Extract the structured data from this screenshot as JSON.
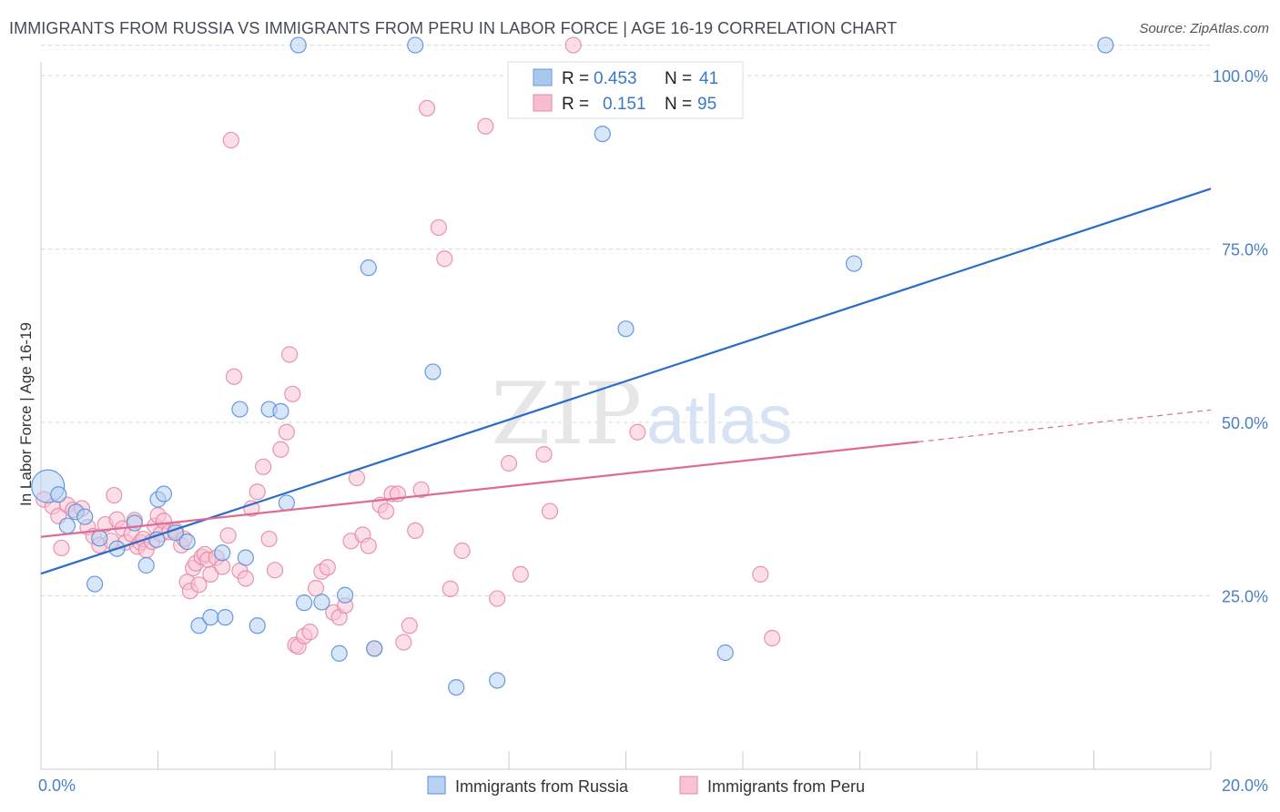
{
  "title": "IMMIGRANTS FROM RUSSIA VS IMMIGRANTS FROM PERU IN LABOR FORCE | AGE 16-19 CORRELATION CHART",
  "source": "Source: ZipAtlas.com",
  "watermark": {
    "zip": "ZIP",
    "atlas": "atlas"
  },
  "legend": {
    "r_label": "R =",
    "n_label": "N =",
    "rows": [
      {
        "r": "0.453",
        "n": "41",
        "color": "#a9c8f0",
        "edge": "#6a9ad8"
      },
      {
        "r": "0.151",
        "n": "95",
        "color": "#f7bcd0",
        "edge": "#e888a8"
      }
    ]
  },
  "colors": {
    "russia_fill": "#b8d2f4",
    "russia_edge": "#5a8fd6",
    "russia_line": "#2a6cc8",
    "peru_fill": "#f9c3d4",
    "peru_edge": "#e48aa8",
    "peru_line": "#e06a96",
    "grid": "#d8d8d8",
    "tick_text": "#4a80c8"
  },
  "chart_data": {
    "type": "scatter",
    "title": "IMMIGRANTS FROM RUSSIA VS IMMIGRANTS FROM PERU IN LABOR FORCE | AGE 16-19 CORRELATION CHART",
    "xlabel": "",
    "ylabel": "In Labor Force | Age 16-19",
    "xlim": [
      0,
      20
    ],
    "ylim": [
      0,
      105
    ],
    "x_tick_labels": [
      "0.0%",
      "20.0%"
    ],
    "y_ticks": [
      25,
      50,
      75,
      100
    ],
    "y_tick_labels": [
      "25.0%",
      "50.0%",
      "75.0%",
      "100.0%"
    ],
    "grid": "horizontal dashed",
    "legend_position": "top-center",
    "series": [
      {
        "name": "Immigrants from Russia",
        "r": 0.453,
        "n": 41,
        "trend": {
          "x": [
            0,
            20
          ],
          "y": [
            28.2,
            83.7
          ]
        },
        "points": [
          {
            "x": 0.12,
            "y": 40.8,
            "big": true
          },
          {
            "x": 0.3,
            "y": 39.6
          },
          {
            "x": 0.45,
            "y": 35.1
          },
          {
            "x": 0.6,
            "y": 37.1
          },
          {
            "x": 0.75,
            "y": 36.4
          },
          {
            "x": 0.92,
            "y": 26.7
          },
          {
            "x": 1.0,
            "y": 33.3
          },
          {
            "x": 1.3,
            "y": 31.8
          },
          {
            "x": 1.6,
            "y": 35.5
          },
          {
            "x": 1.8,
            "y": 29.4
          },
          {
            "x": 1.98,
            "y": 33.1
          },
          {
            "x": 2.0,
            "y": 38.9
          },
          {
            "x": 2.1,
            "y": 39.7
          },
          {
            "x": 2.3,
            "y": 34.1
          },
          {
            "x": 2.5,
            "y": 32.8
          },
          {
            "x": 2.7,
            "y": 20.7
          },
          {
            "x": 2.9,
            "y": 21.9
          },
          {
            "x": 3.1,
            "y": 31.2
          },
          {
            "x": 3.15,
            "y": 21.9
          },
          {
            "x": 3.4,
            "y": 51.9
          },
          {
            "x": 3.5,
            "y": 30.5
          },
          {
            "x": 3.7,
            "y": 20.7
          },
          {
            "x": 3.9,
            "y": 51.9
          },
          {
            "x": 4.1,
            "y": 51.6
          },
          {
            "x": 4.2,
            "y": 38.4
          },
          {
            "x": 4.4,
            "y": 104.4
          },
          {
            "x": 4.5,
            "y": 24.0
          },
          {
            "x": 4.8,
            "y": 24.1
          },
          {
            "x": 5.1,
            "y": 16.7
          },
          {
            "x": 5.2,
            "y": 25.1
          },
          {
            "x": 5.6,
            "y": 72.3
          },
          {
            "x": 5.7,
            "y": 17.4
          },
          {
            "x": 6.4,
            "y": 104.4
          },
          {
            "x": 6.7,
            "y": 57.3
          },
          {
            "x": 7.1,
            "y": 11.8
          },
          {
            "x": 7.8,
            "y": 12.8
          },
          {
            "x": 9.6,
            "y": 91.6
          },
          {
            "x": 10.0,
            "y": 63.5
          },
          {
            "x": 11.7,
            "y": 16.8
          },
          {
            "x": 13.9,
            "y": 72.9
          },
          {
            "x": 18.2,
            "y": 104.4
          }
        ]
      },
      {
        "name": "Immigrants from Peru",
        "r": 0.151,
        "n": 95,
        "trend": {
          "x": [
            0,
            15.0
          ],
          "y": [
            33.5,
            47.2
          ]
        },
        "trend_dashed": {
          "x": [
            15.0,
            20
          ],
          "y": [
            47.2,
            51.8
          ]
        },
        "points": [
          {
            "x": 0.05,
            "y": 38.9
          },
          {
            "x": 0.2,
            "y": 37.9
          },
          {
            "x": 0.3,
            "y": 36.5
          },
          {
            "x": 0.35,
            "y": 31.9
          },
          {
            "x": 0.45,
            "y": 38.1
          },
          {
            "x": 0.55,
            "y": 37.4
          },
          {
            "x": 0.7,
            "y": 37.6
          },
          {
            "x": 0.8,
            "y": 34.9
          },
          {
            "x": 0.9,
            "y": 33.6
          },
          {
            "x": 1.0,
            "y": 32.3
          },
          {
            "x": 1.1,
            "y": 35.3
          },
          {
            "x": 1.2,
            "y": 32.9
          },
          {
            "x": 1.25,
            "y": 39.5
          },
          {
            "x": 1.3,
            "y": 36.0
          },
          {
            "x": 1.4,
            "y": 34.7
          },
          {
            "x": 1.45,
            "y": 32.7
          },
          {
            "x": 1.55,
            "y": 33.9
          },
          {
            "x": 1.6,
            "y": 35.9
          },
          {
            "x": 1.65,
            "y": 32.1
          },
          {
            "x": 1.7,
            "y": 32.7
          },
          {
            "x": 1.75,
            "y": 33.2
          },
          {
            "x": 1.8,
            "y": 31.6
          },
          {
            "x": 1.9,
            "y": 32.8
          },
          {
            "x": 1.95,
            "y": 35.1
          },
          {
            "x": 2.0,
            "y": 36.6
          },
          {
            "x": 2.05,
            "y": 33.9
          },
          {
            "x": 2.1,
            "y": 35.8
          },
          {
            "x": 2.2,
            "y": 34.2
          },
          {
            "x": 2.3,
            "y": 34.4
          },
          {
            "x": 2.4,
            "y": 32.3
          },
          {
            "x": 2.45,
            "y": 33.2
          },
          {
            "x": 2.5,
            "y": 27.0
          },
          {
            "x": 2.55,
            "y": 25.7
          },
          {
            "x": 2.6,
            "y": 29.0
          },
          {
            "x": 2.65,
            "y": 29.7
          },
          {
            "x": 2.7,
            "y": 26.6
          },
          {
            "x": 2.75,
            "y": 30.6
          },
          {
            "x": 2.8,
            "y": 31.0
          },
          {
            "x": 2.85,
            "y": 30.2
          },
          {
            "x": 2.9,
            "y": 28.1
          },
          {
            "x": 3.0,
            "y": 30.5
          },
          {
            "x": 3.1,
            "y": 29.2
          },
          {
            "x": 3.2,
            "y": 33.7
          },
          {
            "x": 3.3,
            "y": 56.6
          },
          {
            "x": 3.4,
            "y": 28.6
          },
          {
            "x": 3.5,
            "y": 27.5
          },
          {
            "x": 3.6,
            "y": 37.6
          },
          {
            "x": 3.7,
            "y": 40.0
          },
          {
            "x": 3.8,
            "y": 43.6
          },
          {
            "x": 3.9,
            "y": 33.2
          },
          {
            "x": 4.0,
            "y": 28.7
          },
          {
            "x": 4.1,
            "y": 46.1
          },
          {
            "x": 4.2,
            "y": 48.6
          },
          {
            "x": 4.25,
            "y": 59.8
          },
          {
            "x": 4.3,
            "y": 54.1
          },
          {
            "x": 4.35,
            "y": 17.9
          },
          {
            "x": 4.4,
            "y": 17.7
          },
          {
            "x": 4.5,
            "y": 19.2
          },
          {
            "x": 4.6,
            "y": 19.8
          },
          {
            "x": 4.7,
            "y": 26.1
          },
          {
            "x": 4.8,
            "y": 28.5
          },
          {
            "x": 4.9,
            "y": 29.1
          },
          {
            "x": 5.0,
            "y": 22.6
          },
          {
            "x": 5.1,
            "y": 21.9
          },
          {
            "x": 5.2,
            "y": 23.6
          },
          {
            "x": 5.3,
            "y": 32.9
          },
          {
            "x": 5.4,
            "y": 42.0
          },
          {
            "x": 5.5,
            "y": 33.8
          },
          {
            "x": 5.6,
            "y": 32.2
          },
          {
            "x": 5.7,
            "y": 17.4
          },
          {
            "x": 5.8,
            "y": 38.1
          },
          {
            "x": 5.9,
            "y": 37.2
          },
          {
            "x": 6.0,
            "y": 39.7
          },
          {
            "x": 6.1,
            "y": 39.7
          },
          {
            "x": 6.2,
            "y": 18.3
          },
          {
            "x": 6.3,
            "y": 20.7
          },
          {
            "x": 6.4,
            "y": 34.4
          },
          {
            "x": 6.5,
            "y": 40.3
          },
          {
            "x": 6.6,
            "y": 95.3
          },
          {
            "x": 6.8,
            "y": 78.1
          },
          {
            "x": 6.9,
            "y": 73.6
          },
          {
            "x": 7.0,
            "y": 26.0
          },
          {
            "x": 7.2,
            "y": 31.5
          },
          {
            "x": 7.6,
            "y": 92.7
          },
          {
            "x": 7.8,
            "y": 24.6
          },
          {
            "x": 8.0,
            "y": 44.1
          },
          {
            "x": 8.2,
            "y": 28.1
          },
          {
            "x": 8.6,
            "y": 45.4
          },
          {
            "x": 8.7,
            "y": 37.2
          },
          {
            "x": 9.1,
            "y": 104.4
          },
          {
            "x": 10.2,
            "y": 48.6
          },
          {
            "x": 12.3,
            "y": 28.1
          },
          {
            "x": 12.5,
            "y": 18.9
          },
          {
            "x": 3.25,
            "y": 90.7
          }
        ]
      }
    ]
  },
  "bottom_legend": [
    {
      "label": "Immigrants from Russia"
    },
    {
      "label": "Immigrants from Peru"
    }
  ]
}
